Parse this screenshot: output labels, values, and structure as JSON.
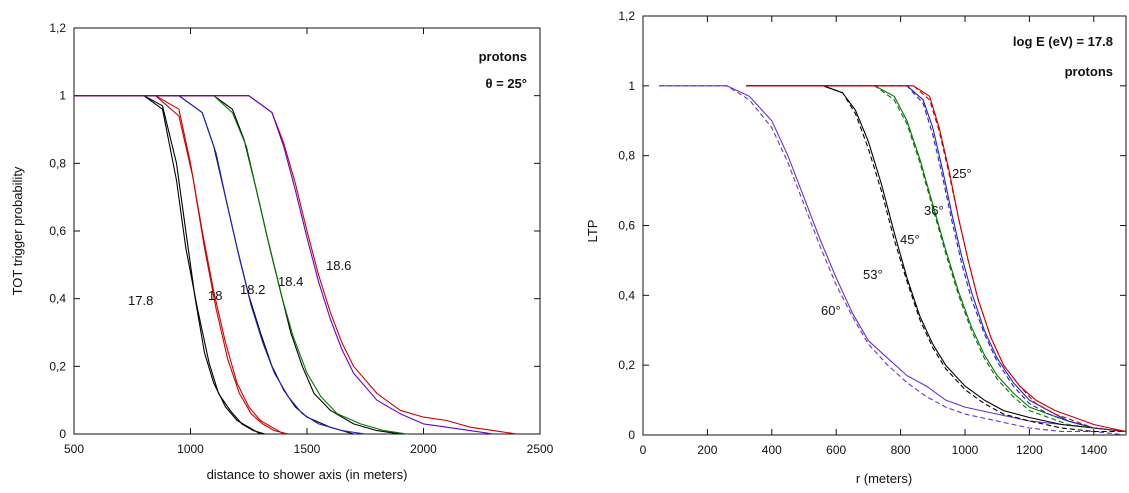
{
  "chart_data": [
    {
      "type": "line",
      "xlabel": "distance to shower axis (in meters)",
      "ylabel": "TOT trigger probability",
      "xlim": [
        500,
        2500
      ],
      "ylim": [
        0,
        1.2
      ],
      "x_ticks": [
        "500",
        "1000",
        "1500",
        "2000",
        "2500"
      ],
      "y_ticks": [
        "0",
        "0,2",
        "0,4",
        "0,6",
        "0,8",
        "1",
        "1,2"
      ],
      "annotations": [
        "protons",
        "θ = 25°"
      ],
      "curve_labels": [
        "17.8",
        "18",
        "18.2",
        "18.4",
        "18.6"
      ],
      "series": [
        {
          "color": "#000000",
          "x": [
            500,
            800,
            880,
            940,
            980,
            1020,
            1060,
            1100,
            1150,
            1200,
            1250,
            1300
          ],
          "values": [
            1,
            1,
            0.97,
            0.8,
            0.6,
            0.4,
            0.24,
            0.15,
            0.08,
            0.04,
            0.02,
            0
          ]
        },
        {
          "color": "#000000",
          "x": [
            500,
            800,
            880,
            940,
            980,
            1030,
            1080,
            1120,
            1170,
            1220,
            1270,
            1320
          ],
          "values": [
            1,
            1,
            0.96,
            0.75,
            0.55,
            0.37,
            0.21,
            0.12,
            0.07,
            0.03,
            0.01,
            0
          ]
        },
        {
          "color": "#cc0000",
          "x": [
            500,
            850,
            950,
            1000,
            1050,
            1100,
            1150,
            1200,
            1250,
            1300,
            1350,
            1400
          ],
          "values": [
            1,
            1,
            0.96,
            0.8,
            0.6,
            0.42,
            0.27,
            0.15,
            0.08,
            0.04,
            0.02,
            0
          ]
        },
        {
          "color": "#cc0000",
          "x": [
            500,
            850,
            950,
            1010,
            1060,
            1110,
            1160,
            1210,
            1260,
            1310,
            1360,
            1420
          ],
          "values": [
            1,
            1,
            0.94,
            0.76,
            0.55,
            0.37,
            0.22,
            0.12,
            0.06,
            0.03,
            0.01,
            0
          ]
        },
        {
          "color": "#000000",
          "x": [
            500,
            950,
            1050,
            1100,
            1150,
            1200,
            1250,
            1300,
            1350,
            1400,
            1450,
            1500,
            1600,
            1700
          ],
          "values": [
            1,
            1,
            0.95,
            0.85,
            0.7,
            0.55,
            0.41,
            0.3,
            0.2,
            0.13,
            0.08,
            0.05,
            0.02,
            0
          ]
        },
        {
          "color": "#2222cc",
          "x": [
            500,
            950,
            1050,
            1110,
            1160,
            1210,
            1260,
            1310,
            1360,
            1420,
            1480,
            1550,
            1650,
            1750
          ],
          "values": [
            1,
            1,
            0.95,
            0.83,
            0.67,
            0.52,
            0.38,
            0.27,
            0.18,
            0.11,
            0.06,
            0.03,
            0.01,
            0
          ]
        },
        {
          "color": "#000000",
          "x": [
            500,
            1100,
            1180,
            1230,
            1280,
            1330,
            1380,
            1430,
            1480,
            1530,
            1600,
            1700,
            1800,
            1900
          ],
          "values": [
            1,
            1,
            0.96,
            0.87,
            0.73,
            0.58,
            0.44,
            0.3,
            0.2,
            0.12,
            0.07,
            0.03,
            0.01,
            0
          ]
        },
        {
          "color": "#007700",
          "x": [
            500,
            1100,
            1180,
            1240,
            1290,
            1340,
            1390,
            1440,
            1500,
            1560,
            1630,
            1730,
            1830,
            1930
          ],
          "values": [
            1,
            1,
            0.95,
            0.85,
            0.7,
            0.55,
            0.41,
            0.29,
            0.18,
            0.11,
            0.06,
            0.03,
            0.01,
            0
          ]
        },
        {
          "color": "#cc0000",
          "x": [
            500,
            1250,
            1350,
            1400,
            1450,
            1500,
            1550,
            1600,
            1650,
            1700,
            1800,
            1900,
            2000,
            2100,
            2200,
            2300,
            2400
          ],
          "values": [
            1,
            1,
            0.95,
            0.86,
            0.74,
            0.6,
            0.47,
            0.36,
            0.27,
            0.2,
            0.12,
            0.07,
            0.05,
            0.04,
            0.02,
            0.01,
            0
          ]
        },
        {
          "color": "#6600cc",
          "x": [
            500,
            1250,
            1350,
            1400,
            1450,
            1500,
            1550,
            1600,
            1650,
            1700,
            1800,
            1900,
            2000,
            2100,
            2200,
            2300
          ],
          "values": [
            1,
            1,
            0.95,
            0.85,
            0.72,
            0.58,
            0.45,
            0.34,
            0.25,
            0.18,
            0.1,
            0.06,
            0.03,
            0.02,
            0.01,
            0
          ]
        }
      ]
    },
    {
      "type": "line",
      "xlabel": "r (meters)",
      "ylabel": "LTP",
      "xlim": [
        0,
        1500
      ],
      "ylim": [
        0,
        1.2
      ],
      "x_ticks": [
        "0",
        "200",
        "400",
        "600",
        "800",
        "1000",
        "1200",
        "1400"
      ],
      "y_ticks": [
        "0",
        "0,2",
        "0,4",
        "0,6",
        "0,8",
        "1",
        "1,2"
      ],
      "annotations": [
        "log E (eV) = 17.8",
        "protons"
      ],
      "curve_labels": [
        "25°",
        "36°",
        "45°",
        "53°",
        "60°"
      ],
      "series": [
        {
          "color": "#6633cc",
          "dash": false,
          "x": [
            50,
            260,
            330,
            400,
            450,
            500,
            550,
            600,
            650,
            700,
            760,
            820,
            880,
            940,
            1000,
            1100,
            1200,
            1300,
            1400,
            1500
          ],
          "values": [
            1,
            1,
            0.97,
            0.9,
            0.8,
            0.68,
            0.56,
            0.45,
            0.35,
            0.27,
            0.22,
            0.17,
            0.14,
            0.1,
            0.08,
            0.06,
            0.04,
            0.03,
            0.02,
            0.01
          ]
        },
        {
          "color": "#6633cc",
          "dash": true,
          "x": [
            50,
            260,
            330,
            400,
            450,
            500,
            550,
            600,
            650,
            700,
            760,
            820,
            880,
            940,
            1000,
            1100,
            1200,
            1300,
            1400,
            1500
          ],
          "values": [
            1,
            1,
            0.96,
            0.88,
            0.78,
            0.66,
            0.54,
            0.43,
            0.34,
            0.26,
            0.2,
            0.15,
            0.11,
            0.08,
            0.06,
            0.04,
            0.02,
            0.01,
            0.01,
            0
          ]
        },
        {
          "color": "#000000",
          "dash": false,
          "x": [
            320,
            560,
            620,
            660,
            700,
            740,
            780,
            820,
            860,
            900,
            940,
            1000,
            1060,
            1120,
            1200,
            1300,
            1400,
            1500
          ],
          "values": [
            1,
            1,
            0.98,
            0.93,
            0.84,
            0.72,
            0.58,
            0.45,
            0.34,
            0.26,
            0.2,
            0.14,
            0.1,
            0.07,
            0.05,
            0.03,
            0.02,
            0.01
          ]
        },
        {
          "color": "#000000",
          "dash": true,
          "x": [
            320,
            560,
            620,
            660,
            700,
            740,
            780,
            820,
            860,
            900,
            940,
            1000,
            1060,
            1120,
            1200,
            1300,
            1400,
            1500
          ],
          "values": [
            1,
            1,
            0.98,
            0.92,
            0.82,
            0.7,
            0.56,
            0.44,
            0.33,
            0.25,
            0.19,
            0.13,
            0.09,
            0.06,
            0.04,
            0.02,
            0.01,
            0.01
          ]
        },
        {
          "color": "#007700",
          "dash": false,
          "x": [
            320,
            720,
            780,
            820,
            860,
            900,
            940,
            980,
            1020,
            1060,
            1100,
            1150,
            1200,
            1260,
            1320,
            1400,
            1500
          ],
          "values": [
            1,
            1,
            0.97,
            0.9,
            0.79,
            0.66,
            0.53,
            0.41,
            0.31,
            0.23,
            0.17,
            0.12,
            0.08,
            0.06,
            0.04,
            0.02,
            0.01
          ]
        },
        {
          "color": "#007700",
          "dash": true,
          "x": [
            320,
            720,
            780,
            820,
            860,
            900,
            940,
            980,
            1020,
            1060,
            1100,
            1150,
            1200,
            1260,
            1320,
            1400,
            1500
          ],
          "values": [
            1,
            1,
            0.96,
            0.89,
            0.78,
            0.65,
            0.52,
            0.4,
            0.3,
            0.22,
            0.16,
            0.11,
            0.07,
            0.05,
            0.03,
            0.02,
            0.01
          ]
        },
        {
          "color": "#2222cc",
          "dash": false,
          "x": [
            320,
            820,
            870,
            900,
            930,
            960,
            990,
            1020,
            1060,
            1100,
            1150,
            1200,
            1260,
            1320,
            1400,
            1500
          ],
          "values": [
            1,
            1,
            0.96,
            0.88,
            0.76,
            0.63,
            0.51,
            0.41,
            0.3,
            0.22,
            0.15,
            0.1,
            0.07,
            0.04,
            0.02,
            0.01
          ]
        },
        {
          "color": "#2222cc",
          "dash": true,
          "x": [
            320,
            820,
            870,
            900,
            930,
            960,
            990,
            1020,
            1060,
            1100,
            1150,
            1200,
            1260,
            1320,
            1400,
            1500
          ],
          "values": [
            1,
            1,
            0.95,
            0.86,
            0.74,
            0.61,
            0.49,
            0.39,
            0.29,
            0.21,
            0.14,
            0.09,
            0.06,
            0.04,
            0.02,
            0.01
          ]
        },
        {
          "color": "#cc0000",
          "dash": false,
          "x": [
            320,
            840,
            890,
            920,
            950,
            980,
            1010,
            1040,
            1080,
            1120,
            1170,
            1220,
            1280,
            1340,
            1400,
            1450,
            1500
          ],
          "values": [
            1,
            1,
            0.97,
            0.88,
            0.76,
            0.62,
            0.5,
            0.39,
            0.28,
            0.2,
            0.14,
            0.1,
            0.07,
            0.05,
            0.03,
            0.02,
            0.01
          ]
        },
        {
          "color": "#cc0000",
          "dash": true,
          "x": [
            320,
            840,
            890,
            920,
            950,
            980,
            1010,
            1040,
            1080,
            1120,
            1170,
            1220,
            1280,
            1340,
            1400,
            1500
          ],
          "values": [
            1,
            1,
            0.96,
            0.87,
            0.75,
            0.62,
            0.5,
            0.39,
            0.28,
            0.2,
            0.14,
            0.09,
            0.06,
            0.04,
            0.02,
            0.01
          ]
        }
      ]
    }
  ]
}
